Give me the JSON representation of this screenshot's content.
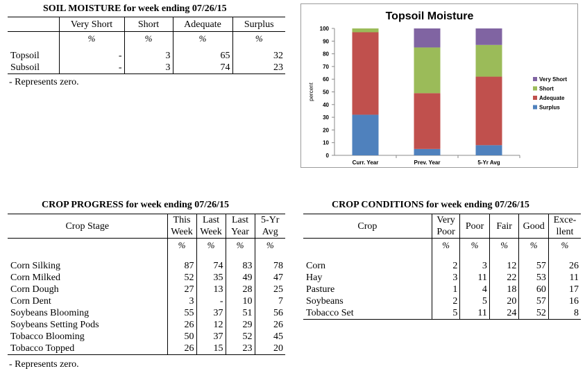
{
  "soil": {
    "title": "SOIL MOISTURE for week ending 07/26/15",
    "headers": [
      "Very Short",
      "Short",
      "Adequate",
      "Surplus"
    ],
    "units": [
      "%",
      "%",
      "%",
      "%"
    ],
    "rows": [
      {
        "label": "Topsoil",
        "values": [
          "-",
          "3",
          "65",
          "32"
        ]
      },
      {
        "label": "Subsoil",
        "values": [
          "-",
          "3",
          "74",
          "23"
        ]
      }
    ],
    "note": "- Represents zero."
  },
  "progress": {
    "title": "CROP PROGRESS for week ending 07/26/15",
    "stage_header": "Crop Stage",
    "headers": [
      [
        "This",
        "Week"
      ],
      [
        "Last",
        "Week"
      ],
      [
        "Last",
        "Year"
      ],
      [
        "5-Yr",
        "Avg"
      ]
    ],
    "units": [
      "%",
      "%",
      "%",
      "%"
    ],
    "rows": [
      {
        "label": "Corn Silking",
        "values": [
          "87",
          "74",
          "83",
          "78"
        ]
      },
      {
        "label": "Corn Milked",
        "values": [
          "52",
          "35",
          "49",
          "47"
        ]
      },
      {
        "label": "Corn Dough",
        "values": [
          "27",
          "13",
          "28",
          "25"
        ]
      },
      {
        "label": "Corn Dent",
        "values": [
          "3",
          "-",
          "10",
          "7"
        ]
      },
      {
        "label": "Soybeans Blooming",
        "values": [
          "55",
          "37",
          "51",
          "56"
        ]
      },
      {
        "label": "Soybeans Setting Pods",
        "values": [
          "26",
          "12",
          "29",
          "26"
        ]
      },
      {
        "label": "Tobacco Blooming",
        "values": [
          "50",
          "37",
          "52",
          "45"
        ]
      },
      {
        "label": "Tobacco Topped",
        "values": [
          "26",
          "15",
          "23",
          "20"
        ]
      }
    ],
    "note": "- Represents zero."
  },
  "conditions": {
    "title": "CROP CONDITIONS for week ending 07/26/15",
    "crop_header": "Crop",
    "headers": [
      [
        "Very",
        "Poor"
      ],
      [
        "Poor",
        ""
      ],
      [
        "Fair",
        ""
      ],
      [
        "Good",
        ""
      ],
      [
        "Exce-",
        "llent"
      ]
    ],
    "units": [
      "%",
      "%",
      "%",
      "%",
      "%"
    ],
    "rows": [
      {
        "label": "Corn",
        "values": [
          "2",
          "3",
          "12",
          "57",
          "26"
        ]
      },
      {
        "label": "Hay",
        "values": [
          "3",
          "11",
          "22",
          "53",
          "11"
        ]
      },
      {
        "label": "Pasture",
        "values": [
          "1",
          "4",
          "18",
          "60",
          "17"
        ]
      },
      {
        "label": "Soybeans",
        "values": [
          "2",
          "5",
          "20",
          "57",
          "16"
        ]
      },
      {
        "label": "Tobacco Set",
        "values": [
          "5",
          "11",
          "24",
          "52",
          "8"
        ]
      }
    ]
  },
  "chart_data": {
    "type": "bar",
    "stacked": true,
    "title": "Topsoil Moisture",
    "ylabel": "percent",
    "xlabel": "",
    "ylim": [
      0,
      100
    ],
    "yticks": [
      0,
      10,
      20,
      30,
      40,
      50,
      60,
      70,
      80,
      90,
      100
    ],
    "categories": [
      "Curr. Year",
      "Prev. Year",
      "5-Yr Avg"
    ],
    "series": [
      {
        "name": "Surplus",
        "color": "#4f81bd",
        "values": [
          32,
          5,
          8
        ]
      },
      {
        "name": "Adequate",
        "color": "#c0504d",
        "values": [
          65,
          44,
          54
        ]
      },
      {
        "name": "Short",
        "color": "#9bbb59",
        "values": [
          3,
          36,
          25
        ]
      },
      {
        "name": "Very Short",
        "color": "#8064a2",
        "values": [
          0,
          15,
          13
        ]
      }
    ],
    "legend_order": [
      "Very Short",
      "Short",
      "Adequate",
      "Surplus"
    ],
    "legend": "right",
    "grid": false
  }
}
